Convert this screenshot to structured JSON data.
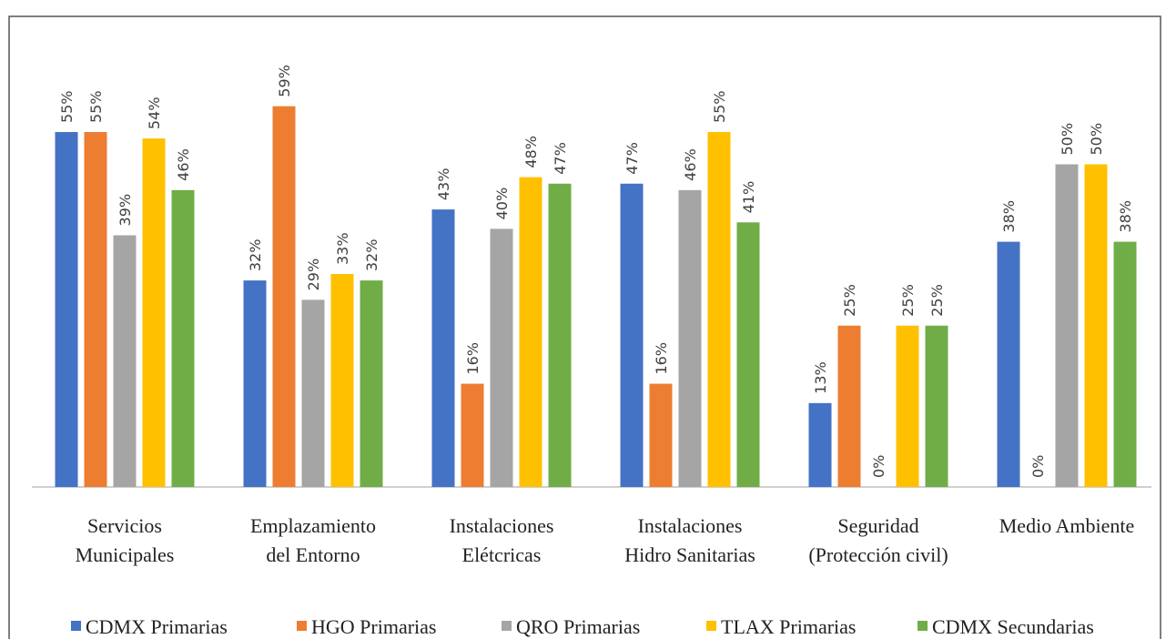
{
  "chart_data": {
    "type": "bar",
    "categories": [
      "Servicios\nMunicipales",
      "Emplazamiento\ndel Entorno",
      "Instalaciones\nElétcricas",
      "Instalaciones\nHidro Sanitarias",
      "Seguridad\n(Protección civil)",
      "Medio Ambiente"
    ],
    "series": [
      {
        "name": "CDMX Primarias",
        "color": "#4472c4",
        "values": [
          55,
          32,
          43,
          47,
          13,
          38
        ],
        "value_labels": [
          "55%",
          "32%",
          "43%",
          "47%",
          "13%",
          "38%"
        ]
      },
      {
        "name": "HGO Primarias",
        "color": "#ed7d31",
        "values": [
          55,
          59,
          16,
          16,
          25,
          0
        ],
        "value_labels": [
          "55%",
          "59%",
          "16%",
          "16%",
          "25%",
          "0%"
        ]
      },
      {
        "name": "QRO Primarias",
        "color": "#a5a5a5",
        "values": [
          39,
          29,
          40,
          46,
          0,
          50
        ],
        "value_labels": [
          "39%",
          "29%",
          "40%",
          "46%",
          "0%",
          "50%"
        ]
      },
      {
        "name": "TLAX Primarias",
        "color": "#ffc000",
        "values": [
          54,
          33,
          48,
          55,
          25,
          50
        ],
        "value_labels": [
          "54%",
          "33%",
          "48%",
          "55%",
          "25%",
          "50%"
        ]
      },
      {
        "name": "CDMX Secundarias",
        "color": "#70ad47",
        "values": [
          46,
          32,
          47,
          41,
          25,
          38
        ],
        "value_labels": [
          "46%",
          "32%",
          "47%",
          "41%",
          "25%",
          "38%"
        ]
      }
    ],
    "legend": "bottom"
  }
}
